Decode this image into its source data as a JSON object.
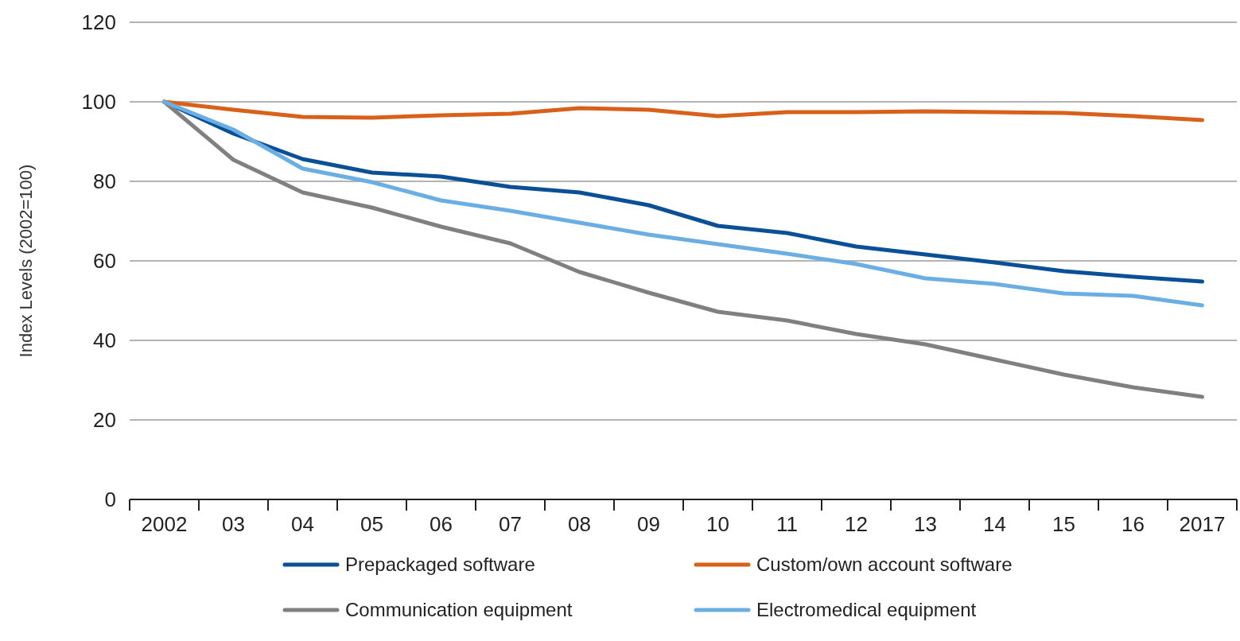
{
  "chart_data": {
    "type": "line",
    "ylabel": "Index Levels (2002=100)",
    "categories": [
      "2002",
      "03",
      "04",
      "05",
      "06",
      "07",
      "08",
      "09",
      "10",
      "11",
      "12",
      "13",
      "14",
      "15",
      "16",
      "2017"
    ],
    "series": [
      {
        "name": "Prepackaged software",
        "color": "#0b4f96",
        "values": [
          100,
          92,
          85.6,
          82.2,
          81.2,
          78.6,
          77.2,
          74,
          68.8,
          67,
          63.6,
          61.6,
          59.6,
          57.4,
          56,
          54.8
        ]
      },
      {
        "name": "Custom/own account software",
        "color": "#d9601a",
        "values": [
          100,
          98,
          96.2,
          96,
          96.6,
          97,
          98.4,
          98,
          96.4,
          97.4,
          97.4,
          97.6,
          97.4,
          97.2,
          96.4,
          95.4
        ]
      },
      {
        "name": "Communication equipment",
        "color": "#808080",
        "values": [
          100,
          85.4,
          77.2,
          73.4,
          68.6,
          64.4,
          57.2,
          52,
          47.2,
          45,
          41.6,
          39,
          35.2,
          31.4,
          28.2,
          25.8
        ]
      },
      {
        "name": "Electromedical equipment",
        "color": "#6aaee3",
        "values": [
          100,
          93,
          83.2,
          79.8,
          75.2,
          72.6,
          69.6,
          66.6,
          64.2,
          61.8,
          59.2,
          55.6,
          54.2,
          51.8,
          51.2,
          48.8
        ]
      }
    ],
    "ylim": [
      0,
      120
    ],
    "yticks": [
      0,
      20,
      40,
      60,
      80,
      100,
      120
    ],
    "grid": "y",
    "legend": "bottom",
    "marker": "none",
    "line_style": "solid"
  }
}
